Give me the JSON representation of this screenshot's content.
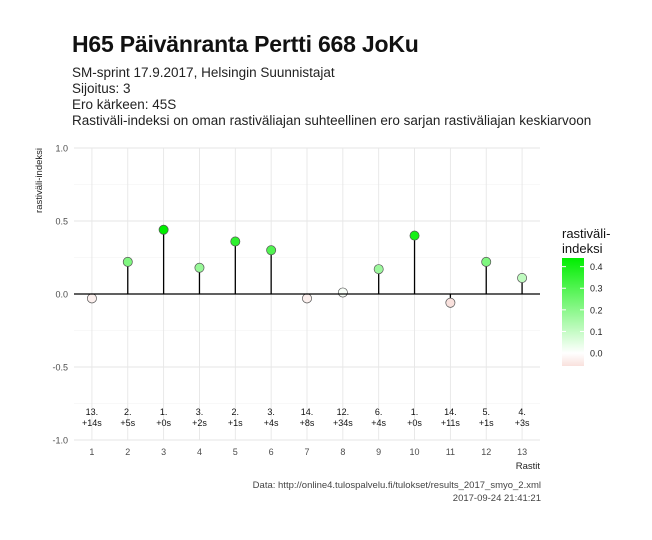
{
  "title": "H65 Päivänranta Pertti 668 JoKu",
  "subtitle_lines": [
    "SM-sprint 17.9.2017, Helsingin Suunnistajat",
    "Sijoitus: 3",
    "Ero kärkeen: 45S",
    "Rastiväli-indeksi on oman rastiväliajan suhteellinen ero sarjan rastiväliajan keskiarvoon"
  ],
  "caption": {
    "source": "Data: http://online4.tulospalvelu.fi/tulokset/results_2017_smyo_2.xml",
    "timestamp": "2017-09-24 21:41:21"
  },
  "chart_data": {
    "type": "scatter",
    "xlabel": "Rastit",
    "ylabel": "rastiväli-indeksi",
    "x": [
      1,
      2,
      3,
      4,
      5,
      6,
      7,
      8,
      9,
      10,
      11,
      12,
      13
    ],
    "values": [
      -0.03,
      0.22,
      0.44,
      0.18,
      0.36,
      0.3,
      -0.03,
      0.01,
      0.17,
      0.4,
      -0.06,
      0.22,
      0.11
    ],
    "point_labels_top": [
      "13.",
      "2.",
      "1.",
      "3.",
      "2.",
      "3.",
      "14.",
      "12.",
      "6.",
      "1.",
      "14.",
      "5.",
      "4."
    ],
    "point_labels_bottom": [
      "+14s",
      "+5s",
      "+0s",
      "+2s",
      "+1s",
      "+4s",
      "+8s",
      "+34s",
      "+4s",
      "+0s",
      "+11s",
      "+1s",
      "+3s"
    ],
    "xlim": [
      0.5,
      13.5
    ],
    "ylim": [
      -1.0,
      1.0
    ],
    "yticks": [
      -1.0,
      -0.5,
      0.0,
      0.5,
      1.0
    ],
    "ytick_labels": [
      "-1.0",
      "-0.5",
      "0.0",
      "0.5",
      "1.0"
    ],
    "grid": true,
    "legend": {
      "title_line1": "rastiväli-",
      "title_line2": "indeksi",
      "position": "right",
      "ticks": [
        0.0,
        0.1,
        0.2,
        0.3,
        0.4
      ],
      "tick_labels": [
        "0.0",
        "0.1",
        "0.2",
        "0.3",
        "0.4"
      ],
      "range": [
        -0.06,
        0.44
      ]
    },
    "colors": {
      "low": "#f9e1dd",
      "mid": "#ffffff",
      "high": "#00ee00",
      "grid": "#e6e6e6",
      "stem": "#000000"
    }
  }
}
